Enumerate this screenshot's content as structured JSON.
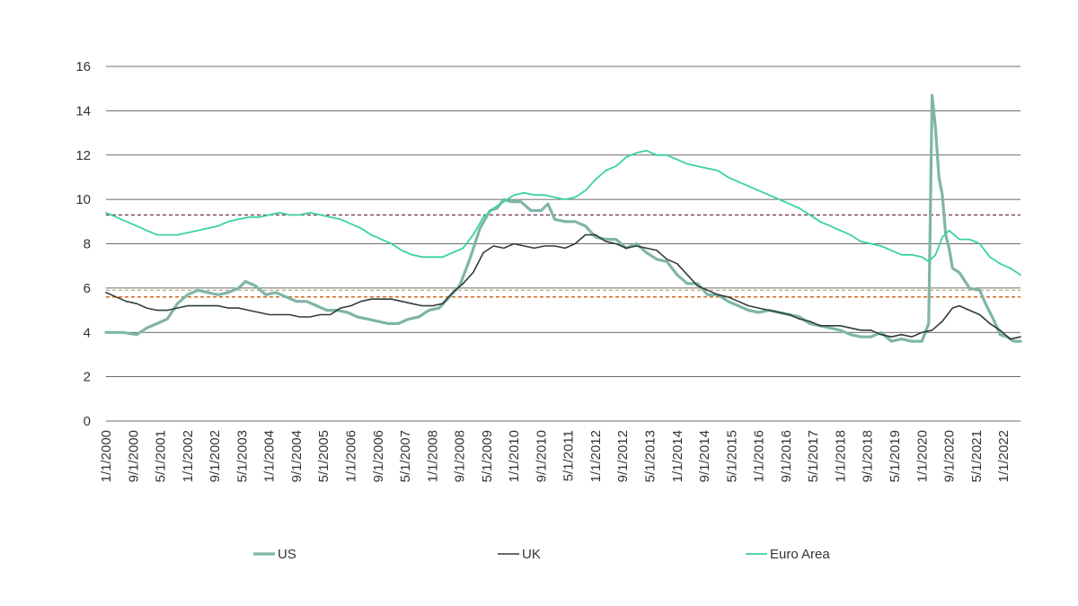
{
  "chart_data": {
    "type": "line",
    "title": "",
    "xlabel": "",
    "ylabel": "",
    "ylim": [
      0,
      16
    ],
    "y_ticks": [
      "0",
      "2",
      "4",
      "6",
      "8",
      "10",
      "12",
      "14",
      "16"
    ],
    "x_range": [
      "2000-01",
      "2022-06"
    ],
    "x_ticks": [
      "1/1/2000",
      "9/1/2000",
      "5/1/2001",
      "1/1/2002",
      "9/1/2002",
      "5/1/2003",
      "1/1/2004",
      "9/1/2004",
      "5/1/2005",
      "1/1/2006",
      "9/1/2006",
      "5/1/2007",
      "1/1/2008",
      "9/1/2008",
      "5/1/2009",
      "1/1/2010",
      "9/1/2010",
      "5/1/2011",
      "1/1/2012",
      "9/1/2012",
      "5/1/2013",
      "1/1/2014",
      "9/1/2014",
      "5/1/2015",
      "1/1/2016",
      "9/1/2016",
      "5/1/2017",
      "1/1/2018",
      "9/1/2018",
      "5/1/2019",
      "1/1/2020",
      "9/1/2020",
      "5/1/2021",
      "1/1/2022"
    ],
    "grid": "horizontal",
    "legend_position": "bottom",
    "series": [
      {
        "name": "US",
        "color": "#7fb5a8",
        "points": [
          [
            "2000-01",
            4.0
          ],
          [
            "2000-03",
            4.0
          ],
          [
            "2000-06",
            4.0
          ],
          [
            "2000-10",
            3.9
          ],
          [
            "2001-01",
            4.2
          ],
          [
            "2001-04",
            4.4
          ],
          [
            "2001-07",
            4.6
          ],
          [
            "2001-10",
            5.3
          ],
          [
            "2002-01",
            5.7
          ],
          [
            "2002-04",
            5.9
          ],
          [
            "2002-07",
            5.8
          ],
          [
            "2002-10",
            5.7
          ],
          [
            "2003-01",
            5.8
          ],
          [
            "2003-04",
            6.0
          ],
          [
            "2003-06",
            6.3
          ],
          [
            "2003-09",
            6.1
          ],
          [
            "2003-12",
            5.7
          ],
          [
            "2004-03",
            5.8
          ],
          [
            "2004-06",
            5.6
          ],
          [
            "2004-09",
            5.4
          ],
          [
            "2004-12",
            5.4
          ],
          [
            "2005-03",
            5.2
          ],
          [
            "2005-06",
            5.0
          ],
          [
            "2005-09",
            5.0
          ],
          [
            "2005-12",
            4.9
          ],
          [
            "2006-03",
            4.7
          ],
          [
            "2006-06",
            4.6
          ],
          [
            "2006-09",
            4.5
          ],
          [
            "2006-12",
            4.4
          ],
          [
            "2007-03",
            4.4
          ],
          [
            "2007-06",
            4.6
          ],
          [
            "2007-09",
            4.7
          ],
          [
            "2007-12",
            5.0
          ],
          [
            "2008-03",
            5.1
          ],
          [
            "2008-06",
            5.6
          ],
          [
            "2008-09",
            6.1
          ],
          [
            "2008-12",
            7.3
          ],
          [
            "2009-03",
            8.7
          ],
          [
            "2009-06",
            9.5
          ],
          [
            "2009-08",
            9.6
          ],
          [
            "2009-10",
            10.0
          ],
          [
            "2009-12",
            9.9
          ],
          [
            "2010-03",
            9.9
          ],
          [
            "2010-06",
            9.5
          ],
          [
            "2010-09",
            9.5
          ],
          [
            "2010-11",
            9.8
          ],
          [
            "2011-01",
            9.1
          ],
          [
            "2011-04",
            9.0
          ],
          [
            "2011-07",
            9.0
          ],
          [
            "2011-10",
            8.8
          ],
          [
            "2012-01",
            8.3
          ],
          [
            "2012-04",
            8.2
          ],
          [
            "2012-07",
            8.2
          ],
          [
            "2012-10",
            7.8
          ],
          [
            "2013-01",
            8.0
          ],
          [
            "2013-04",
            7.6
          ],
          [
            "2013-07",
            7.3
          ],
          [
            "2013-10",
            7.2
          ],
          [
            "2014-01",
            6.6
          ],
          [
            "2014-04",
            6.2
          ],
          [
            "2014-07",
            6.2
          ],
          [
            "2014-10",
            5.7
          ],
          [
            "2015-01",
            5.7
          ],
          [
            "2015-04",
            5.4
          ],
          [
            "2015-07",
            5.2
          ],
          [
            "2015-10",
            5.0
          ],
          [
            "2016-01",
            4.9
          ],
          [
            "2016-04",
            5.0
          ],
          [
            "2016-07",
            4.9
          ],
          [
            "2016-10",
            4.8
          ],
          [
            "2017-01",
            4.7
          ],
          [
            "2017-04",
            4.4
          ],
          [
            "2017-07",
            4.3
          ],
          [
            "2017-10",
            4.2
          ],
          [
            "2018-01",
            4.1
          ],
          [
            "2018-04",
            3.9
          ],
          [
            "2018-07",
            3.8
          ],
          [
            "2018-10",
            3.8
          ],
          [
            "2019-01",
            4.0
          ],
          [
            "2019-04",
            3.6
          ],
          [
            "2019-07",
            3.7
          ],
          [
            "2019-10",
            3.6
          ],
          [
            "2020-01",
            3.6
          ],
          [
            "2020-03",
            4.4
          ],
          [
            "2020-04",
            14.7
          ],
          [
            "2020-05",
            13.2
          ],
          [
            "2020-06",
            11.0
          ],
          [
            "2020-07",
            10.2
          ],
          [
            "2020-08",
            8.4
          ],
          [
            "2020-09",
            7.8
          ],
          [
            "2020-10",
            6.9
          ],
          [
            "2020-12",
            6.7
          ],
          [
            "2021-03",
            6.0
          ],
          [
            "2021-06",
            5.9
          ],
          [
            "2021-08",
            5.2
          ],
          [
            "2021-10",
            4.6
          ],
          [
            "2021-12",
            3.9
          ],
          [
            "2022-02",
            3.8
          ],
          [
            "2022-04",
            3.6
          ],
          [
            "2022-06",
            3.6
          ]
        ]
      },
      {
        "name": "UK",
        "color": "#2f3d3a",
        "points": [
          [
            "2000-01",
            5.8
          ],
          [
            "2000-04",
            5.6
          ],
          [
            "2000-07",
            5.4
          ],
          [
            "2000-10",
            5.3
          ],
          [
            "2001-01",
            5.1
          ],
          [
            "2001-04",
            5.0
          ],
          [
            "2001-07",
            5.0
          ],
          [
            "2001-10",
            5.1
          ],
          [
            "2002-01",
            5.2
          ],
          [
            "2002-04",
            5.2
          ],
          [
            "2002-07",
            5.2
          ],
          [
            "2002-10",
            5.2
          ],
          [
            "2003-01",
            5.1
          ],
          [
            "2003-04",
            5.1
          ],
          [
            "2003-07",
            5.0
          ],
          [
            "2003-10",
            4.9
          ],
          [
            "2004-01",
            4.8
          ],
          [
            "2004-04",
            4.8
          ],
          [
            "2004-07",
            4.8
          ],
          [
            "2004-10",
            4.7
          ],
          [
            "2005-01",
            4.7
          ],
          [
            "2005-04",
            4.8
          ],
          [
            "2005-07",
            4.8
          ],
          [
            "2005-10",
            5.1
          ],
          [
            "2006-01",
            5.2
          ],
          [
            "2006-04",
            5.4
          ],
          [
            "2006-07",
            5.5
          ],
          [
            "2006-10",
            5.5
          ],
          [
            "2007-01",
            5.5
          ],
          [
            "2007-04",
            5.4
          ],
          [
            "2007-07",
            5.3
          ],
          [
            "2007-10",
            5.2
          ],
          [
            "2008-01",
            5.2
          ],
          [
            "2008-04",
            5.3
          ],
          [
            "2008-07",
            5.8
          ],
          [
            "2008-10",
            6.2
          ],
          [
            "2009-01",
            6.7
          ],
          [
            "2009-04",
            7.6
          ],
          [
            "2009-07",
            7.9
          ],
          [
            "2009-10",
            7.8
          ],
          [
            "2010-01",
            8.0
          ],
          [
            "2010-04",
            7.9
          ],
          [
            "2010-07",
            7.8
          ],
          [
            "2010-10",
            7.9
          ],
          [
            "2011-01",
            7.9
          ],
          [
            "2011-04",
            7.8
          ],
          [
            "2011-07",
            8.0
          ],
          [
            "2011-10",
            8.4
          ],
          [
            "2012-01",
            8.4
          ],
          [
            "2012-04",
            8.1
          ],
          [
            "2012-07",
            8.0
          ],
          [
            "2012-10",
            7.8
          ],
          [
            "2013-01",
            7.9
          ],
          [
            "2013-04",
            7.8
          ],
          [
            "2013-07",
            7.7
          ],
          [
            "2013-10",
            7.3
          ],
          [
            "2014-01",
            7.1
          ],
          [
            "2014-04",
            6.6
          ],
          [
            "2014-07",
            6.1
          ],
          [
            "2014-10",
            5.9
          ],
          [
            "2015-01",
            5.7
          ],
          [
            "2015-04",
            5.6
          ],
          [
            "2015-07",
            5.4
          ],
          [
            "2015-10",
            5.2
          ],
          [
            "2016-01",
            5.1
          ],
          [
            "2016-04",
            5.0
          ],
          [
            "2016-07",
            4.9
          ],
          [
            "2016-10",
            4.8
          ],
          [
            "2017-01",
            4.6
          ],
          [
            "2017-04",
            4.5
          ],
          [
            "2017-07",
            4.3
          ],
          [
            "2017-10",
            4.3
          ],
          [
            "2018-01",
            4.3
          ],
          [
            "2018-04",
            4.2
          ],
          [
            "2018-07",
            4.1
          ],
          [
            "2018-10",
            4.1
          ],
          [
            "2019-01",
            3.9
          ],
          [
            "2019-04",
            3.8
          ],
          [
            "2019-07",
            3.9
          ],
          [
            "2019-10",
            3.8
          ],
          [
            "2020-01",
            4.0
          ],
          [
            "2020-04",
            4.1
          ],
          [
            "2020-07",
            4.5
          ],
          [
            "2020-10",
            5.1
          ],
          [
            "2020-12",
            5.2
          ],
          [
            "2021-03",
            5.0
          ],
          [
            "2021-06",
            4.8
          ],
          [
            "2021-09",
            4.4
          ],
          [
            "2021-12",
            4.1
          ],
          [
            "2022-03",
            3.7
          ],
          [
            "2022-06",
            3.8
          ]
        ]
      },
      {
        "name": "Euro Area",
        "color": "#3ad29f",
        "points": [
          [
            "2000-01",
            9.4
          ],
          [
            "2000-04",
            9.2
          ],
          [
            "2000-07",
            9.0
          ],
          [
            "2000-10",
            8.8
          ],
          [
            "2001-01",
            8.6
          ],
          [
            "2001-04",
            8.4
          ],
          [
            "2001-07",
            8.4
          ],
          [
            "2001-10",
            8.4
          ],
          [
            "2002-01",
            8.5
          ],
          [
            "2002-04",
            8.6
          ],
          [
            "2002-07",
            8.7
          ],
          [
            "2002-10",
            8.8
          ],
          [
            "2003-01",
            9.0
          ],
          [
            "2003-04",
            9.1
          ],
          [
            "2003-07",
            9.2
          ],
          [
            "2003-10",
            9.2
          ],
          [
            "2004-01",
            9.3
          ],
          [
            "2004-04",
            9.4
          ],
          [
            "2004-07",
            9.3
          ],
          [
            "2004-10",
            9.3
          ],
          [
            "2005-01",
            9.4
          ],
          [
            "2005-04",
            9.3
          ],
          [
            "2005-07",
            9.2
          ],
          [
            "2005-10",
            9.1
          ],
          [
            "2006-01",
            8.9
          ],
          [
            "2006-04",
            8.7
          ],
          [
            "2006-07",
            8.4
          ],
          [
            "2006-10",
            8.2
          ],
          [
            "2007-01",
            8.0
          ],
          [
            "2007-04",
            7.7
          ],
          [
            "2007-07",
            7.5
          ],
          [
            "2007-10",
            7.4
          ],
          [
            "2008-01",
            7.4
          ],
          [
            "2008-04",
            7.4
          ],
          [
            "2008-07",
            7.6
          ],
          [
            "2008-10",
            7.8
          ],
          [
            "2009-01",
            8.4
          ],
          [
            "2009-04",
            9.2
          ],
          [
            "2009-07",
            9.6
          ],
          [
            "2009-10",
            9.9
          ],
          [
            "2010-01",
            10.2
          ],
          [
            "2010-04",
            10.3
          ],
          [
            "2010-07",
            10.2
          ],
          [
            "2010-10",
            10.2
          ],
          [
            "2011-01",
            10.1
          ],
          [
            "2011-04",
            10.0
          ],
          [
            "2011-07",
            10.1
          ],
          [
            "2011-10",
            10.4
          ],
          [
            "2012-01",
            10.9
          ],
          [
            "2012-04",
            11.3
          ],
          [
            "2012-07",
            11.5
          ],
          [
            "2012-10",
            11.9
          ],
          [
            "2013-01",
            12.1
          ],
          [
            "2013-04",
            12.2
          ],
          [
            "2013-07",
            12.0
          ],
          [
            "2013-10",
            12.0
          ],
          [
            "2014-01",
            11.8
          ],
          [
            "2014-04",
            11.6
          ],
          [
            "2014-07",
            11.5
          ],
          [
            "2014-10",
            11.4
          ],
          [
            "2015-01",
            11.3
          ],
          [
            "2015-04",
            11.0
          ],
          [
            "2015-07",
            10.8
          ],
          [
            "2015-10",
            10.6
          ],
          [
            "2016-01",
            10.4
          ],
          [
            "2016-04",
            10.2
          ],
          [
            "2016-07",
            10.0
          ],
          [
            "2016-10",
            9.8
          ],
          [
            "2017-01",
            9.6
          ],
          [
            "2017-04",
            9.3
          ],
          [
            "2017-07",
            9.0
          ],
          [
            "2017-10",
            8.8
          ],
          [
            "2018-01",
            8.6
          ],
          [
            "2018-04",
            8.4
          ],
          [
            "2018-07",
            8.1
          ],
          [
            "2018-10",
            8.0
          ],
          [
            "2019-01",
            7.9
          ],
          [
            "2019-04",
            7.7
          ],
          [
            "2019-07",
            7.5
          ],
          [
            "2019-10",
            7.5
          ],
          [
            "2020-01",
            7.4
          ],
          [
            "2020-03",
            7.2
          ],
          [
            "2020-05",
            7.5
          ],
          [
            "2020-07",
            8.3
          ],
          [
            "2020-09",
            8.6
          ],
          [
            "2020-12",
            8.2
          ],
          [
            "2021-03",
            8.2
          ],
          [
            "2021-06",
            8.0
          ],
          [
            "2021-09",
            7.4
          ],
          [
            "2021-12",
            7.1
          ],
          [
            "2022-03",
            6.9
          ],
          [
            "2022-06",
            6.6
          ]
        ]
      }
    ],
    "reference_lines": [
      {
        "color": "#7a3b5c",
        "value": 9.3
      },
      {
        "color": "#c0b285",
        "value": 5.9
      },
      {
        "color": "#d2691e",
        "value": 5.6
      }
    ]
  }
}
